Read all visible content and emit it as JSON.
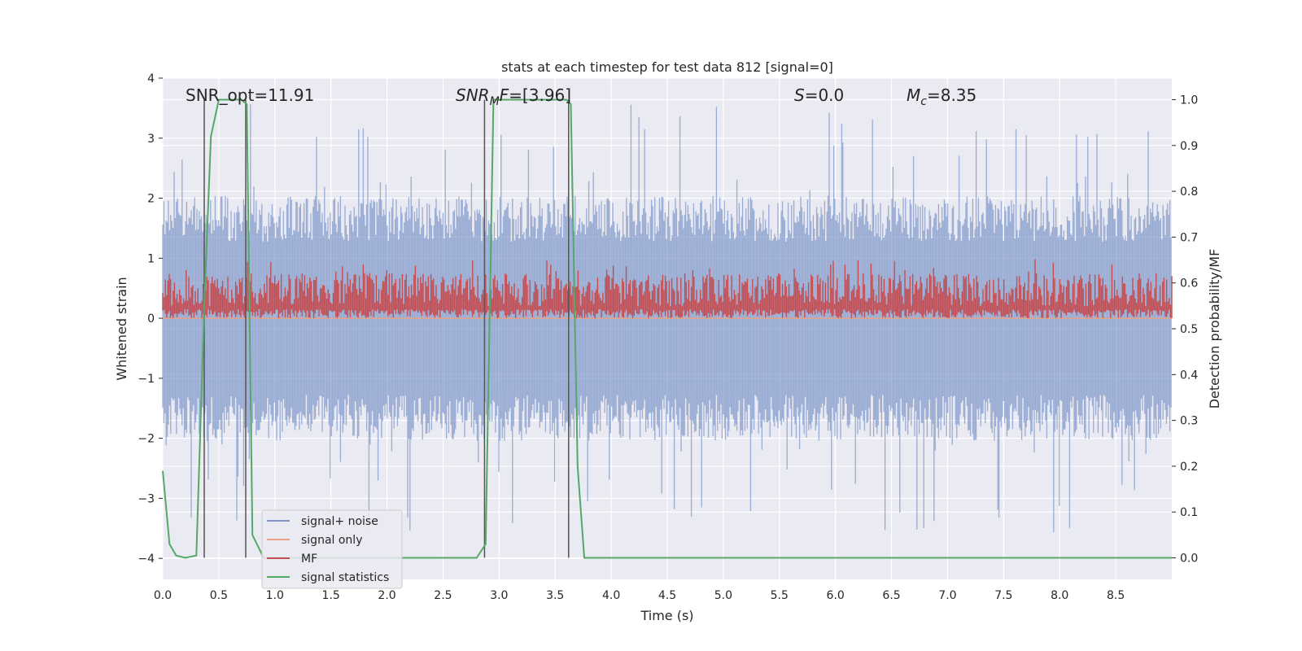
{
  "chart_data": {
    "type": "line",
    "title": "stats at each timestep for test data 812 [signal=0]",
    "xlabel": "Time (s)",
    "ylabel_left": "Whitened strain",
    "ylabel_right": "Detection probability/MF",
    "xlim": [
      0.0,
      9.0
    ],
    "ylim_left": [
      -4.35,
      4.0
    ],
    "ylim_right": [
      -0.047,
      1.047
    ],
    "x_ticks": [
      "0.0",
      "0.5",
      "1.0",
      "1.5",
      "2.0",
      "2.5",
      "3.0",
      "3.5",
      "4.0",
      "4.5",
      "5.0",
      "5.5",
      "6.0",
      "6.5",
      "7.0",
      "7.5",
      "8.0",
      "8.5"
    ],
    "y_ticks_left": [
      "4",
      "3",
      "2",
      "1",
      "0",
      "−1",
      "−2",
      "−3",
      "−4"
    ],
    "y_ticks_right": [
      "1.0",
      "0.9",
      "0.8",
      "0.7",
      "0.6",
      "0.5",
      "0.4",
      "0.3",
      "0.2",
      "0.1",
      "0.0"
    ],
    "grid": true,
    "legend_position": "lower-left",
    "annotations": {
      "snr_opt": "SNR_opt=11.91",
      "snr_mf_label": "SNR",
      "snr_mf_sub": "M",
      "snr_mf_tail": "F",
      "snr_mf_value": "=[3.96]",
      "s_label": "S",
      "s_value": "=0.0",
      "mc_label": "M",
      "mc_sub": "c",
      "mc_value": "=8.35"
    },
    "series": [
      {
        "name": "signal+ noise",
        "color": "#7d97c8",
        "axis": "left",
        "kind": "noise",
        "amplitude_typical": 1.7,
        "amplitude_peak": 3.6
      },
      {
        "name": "signal only",
        "color": "#e8a183",
        "axis": "left",
        "kind": "constant",
        "value": 0.0
      },
      {
        "name": "MF",
        "color": "#c44e52",
        "axis": "left",
        "kind": "band",
        "low": 0.0,
        "high": 0.75,
        "peak": 1.0
      },
      {
        "name": "signal statistics",
        "color": "#55a868",
        "axis": "right",
        "x": [
          0.0,
          0.06,
          0.12,
          0.2,
          0.3,
          0.37,
          0.43,
          0.5,
          0.6,
          0.7,
          0.75,
          0.8,
          0.9,
          1.0,
          1.5,
          2.0,
          2.5,
          2.8,
          2.88,
          2.95,
          3.05,
          3.5,
          3.6,
          3.64,
          3.7,
          3.76,
          3.85,
          4.0,
          5.0,
          6.0,
          7.0,
          8.0,
          9.0
        ],
        "y": [
          0.19,
          0.03,
          0.005,
          0.0,
          0.005,
          0.55,
          0.92,
          1.0,
          1.0,
          1.0,
          0.99,
          0.05,
          0.0,
          0.0,
          0.0,
          0.0,
          0.0,
          0.0,
          0.03,
          1.0,
          1.0,
          1.0,
          1.0,
          0.99,
          0.2,
          0.0,
          0.0,
          0.0,
          0.0,
          0.0,
          0.0,
          0.0,
          0.0
        ]
      }
    ],
    "vlines": [
      0.37,
      0.74,
      2.87,
      3.62
    ]
  }
}
